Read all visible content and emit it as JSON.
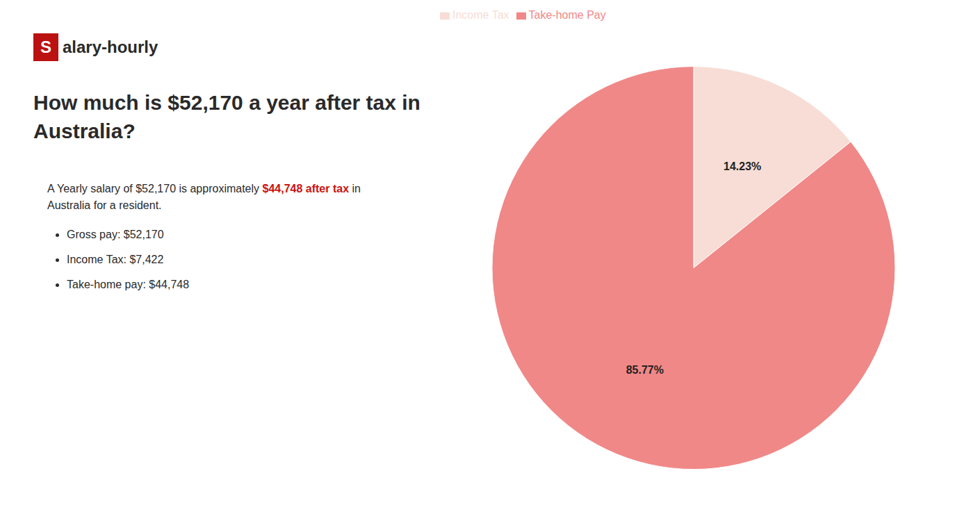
{
  "chart_data": {
    "type": "pie",
    "title": "How much is $52,170 a year after tax in\nAustralia?",
    "categories": [
      "Income Tax",
      "Take-home Pay"
    ],
    "values": [
      14.23,
      85.77
    ],
    "value_labels": [
      "14.23%",
      "85.77%"
    ],
    "colors": [
      "#f7ddd5",
      "#f08888"
    ],
    "data_labels": true,
    "legend": "upper left",
    "annotations": [
      {
        "text": "S",
        "color": "#ffffff",
        "background": "#bb1111"
      },
      {
        "text": "alary-hourly"
      },
      {
        "parts": [
          {
            "text": "A Yearly salary of $52,170 is approximately "
          },
          {
            "text": "$44,748 after tax",
            "color": "#cc1111"
          },
          {
            "text": " in"
          }
        ]
      },
      {
        "text": "Australia for a resident."
      },
      {
        "items": [
          "Gross pay: $52,170",
          "Income Tax: $7,422",
          "Take-home pay: $44,748"
        ]
      }
    ]
  }
}
